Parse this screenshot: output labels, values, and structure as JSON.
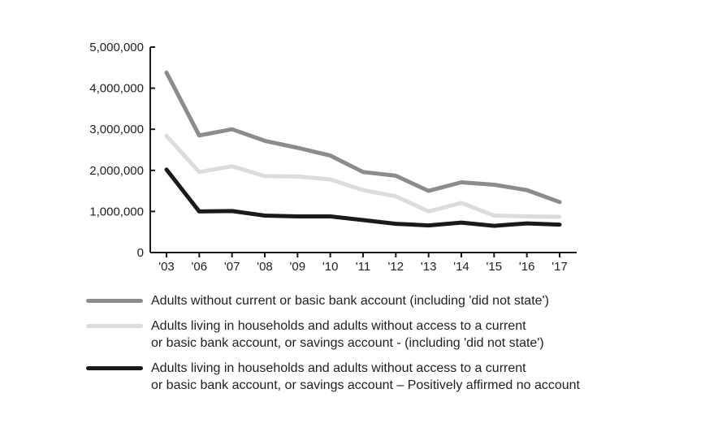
{
  "chart_data": {
    "type": "line",
    "categories": [
      "'03",
      "'06",
      "'07",
      "'08",
      "'09",
      "'10",
      "'11",
      "'12",
      "'13",
      "'14",
      "'15",
      "'16",
      "'17"
    ],
    "series": [
      {
        "name": "Adults without current or basic bank account (including 'did not state')",
        "color": "#8c8c8c",
        "values": [
          4380000,
          2850000,
          3000000,
          2720000,
          2550000,
          2360000,
          1960000,
          1870000,
          1500000,
          1710000,
          1650000,
          1520000,
          1230000
        ]
      },
      {
        "name": "Adults living in households and adults without access to a current\nor basic bank account, or savings account - (including 'did not state')",
        "color": "#dcdcdc",
        "values": [
          2840000,
          1960000,
          2100000,
          1860000,
          1850000,
          1780000,
          1520000,
          1370000,
          1000000,
          1210000,
          900000,
          880000,
          870000
        ]
      },
      {
        "name": "Adults living in households and adults without access to a current\nor basic bank account, or savings account – Positively affirmed no account",
        "color": "#1a1a1a",
        "values": [
          2020000,
          1000000,
          1010000,
          900000,
          880000,
          880000,
          790000,
          700000,
          660000,
          730000,
          650000,
          710000,
          680000
        ]
      }
    ],
    "y_ticks": [
      "0",
      "1,000,000",
      "2,000,000",
      "3,000,000",
      "4,000,000",
      "5,000,000"
    ],
    "y_tick_values": [
      0,
      1000000,
      2000000,
      3000000,
      4000000,
      5000000
    ],
    "ylim": [
      0,
      5000000
    ],
    "grid": false,
    "legend_position": "bottom"
  }
}
